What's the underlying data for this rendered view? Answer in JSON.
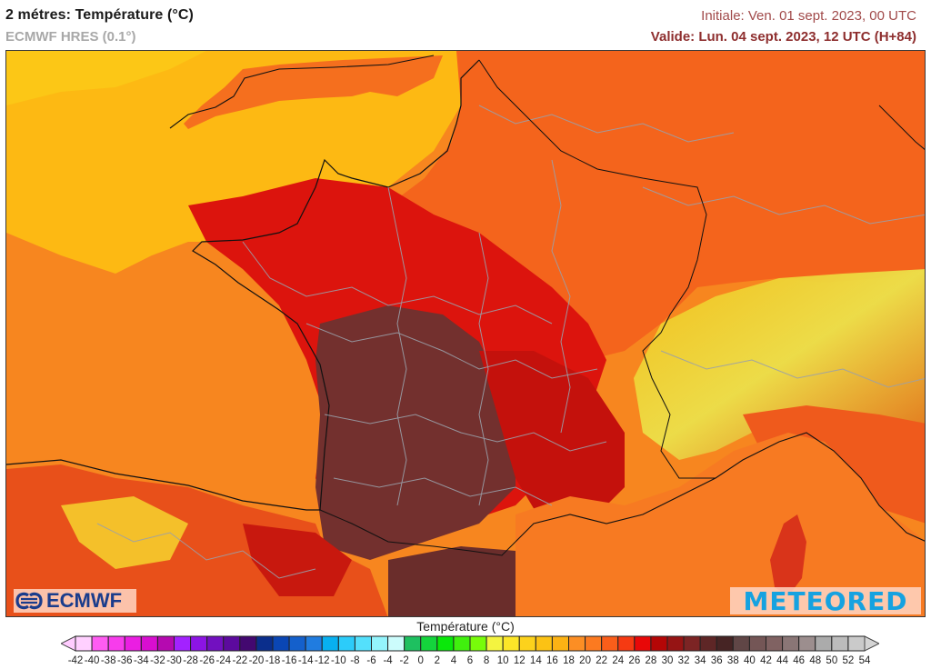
{
  "header": {
    "title": "2 métres: Température (°C)",
    "model": "ECMWF HRES (0.1°)",
    "initial": "Initiale: Ven. 01 sept. 2023, 00 UTC",
    "valid": "Valide: Lun. 04 sept. 2023, 12 UTC (H+84)"
  },
  "map": {
    "region": "France and surrounding Western Europe",
    "variable": "2m temperature",
    "logos": {
      "left": "ECMWF",
      "right": "METEORED"
    },
    "dominant_colors": {
      "sea_north": "#fdb913",
      "sea_atlantic": "#f7861f",
      "sea_med": "#f77a22",
      "land_north": "#f2591c",
      "land_central": "#d90f0a",
      "land_southwest": "#6e3535",
      "alps": "#e8e040"
    }
  },
  "legend": {
    "title": "Température (°C)",
    "labels": [
      "-42",
      "-40",
      "-38",
      "-36",
      "-34",
      "-32",
      "-30",
      "-28",
      "-26",
      "-24",
      "-22",
      "-20",
      "-18",
      "-16",
      "-14",
      "-12",
      "-10",
      "-8",
      "-6",
      "-4",
      "-2",
      "0",
      "2",
      "4",
      "6",
      "8",
      "10",
      "12",
      "14",
      "16",
      "18",
      "20",
      "22",
      "24",
      "26",
      "28",
      "30",
      "32",
      "34",
      "36",
      "38",
      "40",
      "42",
      "44",
      "46",
      "48",
      "50",
      "52",
      "54"
    ],
    "min_arrow_color": "#ffccff",
    "max_arrow_color": "#d4d4d4",
    "colors": [
      "#ffd0ff",
      "#ff5cf2",
      "#f73cec",
      "#ea1ee2",
      "#d80ed0",
      "#b509b0",
      "#a322ff",
      "#8c14e4",
      "#7210c0",
      "#5c0a9e",
      "#430870",
      "#0a2e8c",
      "#0a46b4",
      "#1460cc",
      "#207ce0",
      "#08b0f0",
      "#2cccfa",
      "#54e0fc",
      "#94f4fc",
      "#ccfcfc",
      "#1ec060",
      "#14d43c",
      "#0ae80a",
      "#40f00e",
      "#78fc0a",
      "#f4f440",
      "#fce628",
      "#fcd21c",
      "#fcc214",
      "#fcb214",
      "#fc8e24",
      "#fc7a20",
      "#fa5e1a",
      "#f63a12",
      "#e80808",
      "#b40606",
      "#961414",
      "#7c2424",
      "#5e2626",
      "#462424",
      "#604646",
      "#745656",
      "#806262",
      "#8a7676",
      "#9c8e8e",
      "#ababab",
      "#bcbcbc",
      "#cacaca"
    ]
  }
}
